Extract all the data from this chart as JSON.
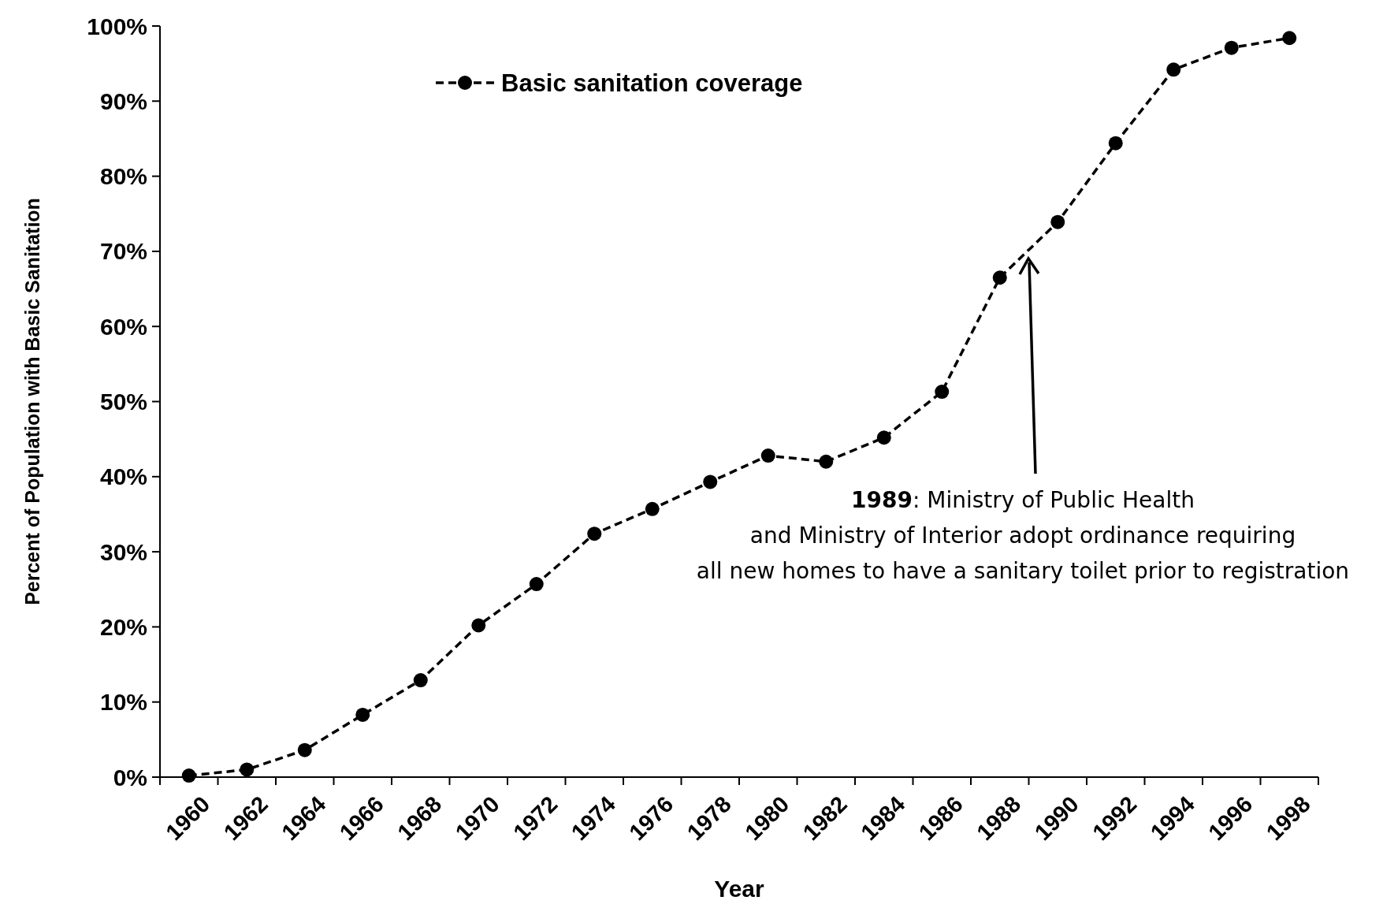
{
  "chart_data": {
    "type": "line",
    "xlabel": "Year",
    "ylabel": "Percent of Population with Basic Sanitation",
    "categories": [
      "1960",
      "1962",
      "1964",
      "1966",
      "1968",
      "1970",
      "1972",
      "1974",
      "1976",
      "1978",
      "1980",
      "1982",
      "1984",
      "1986",
      "1988",
      "1990",
      "1992",
      "1994",
      "1996",
      "1998"
    ],
    "series": [
      {
        "name": "Basic sanitation coverage",
        "color": "#000000",
        "values": [
          0.2,
          1.0,
          3.6,
          8.3,
          12.9,
          20.2,
          25.7,
          32.4,
          35.7,
          39.3,
          42.8,
          42.0,
          45.2,
          51.3,
          66.5,
          73.9,
          84.4,
          94.2,
          97.1,
          98.4
        ]
      }
    ],
    "ylim": [
      0,
      100
    ],
    "yticks": [
      {
        "value": 0,
        "label": "0%"
      },
      {
        "value": 10,
        "label": "10%"
      },
      {
        "value": 20,
        "label": "20%"
      },
      {
        "value": 30,
        "label": "30%"
      },
      {
        "value": 40,
        "label": "40%"
      },
      {
        "value": 50,
        "label": "50%"
      },
      {
        "value": 60,
        "label": "60%"
      },
      {
        "value": 70,
        "label": "70%"
      },
      {
        "value": 80,
        "label": "80%"
      },
      {
        "value": 90,
        "label": "90%"
      },
      {
        "value": 100,
        "label": "100%"
      }
    ],
    "annotations": [
      "1989: Ministry of Public Health\nand Ministry of Interior adopt ordinance requiring\nall new homes to have a sanitary toilet prior to registration"
    ],
    "grid": false,
    "legend": "top left",
    "marker": "circle",
    "line_style": "dashed"
  }
}
